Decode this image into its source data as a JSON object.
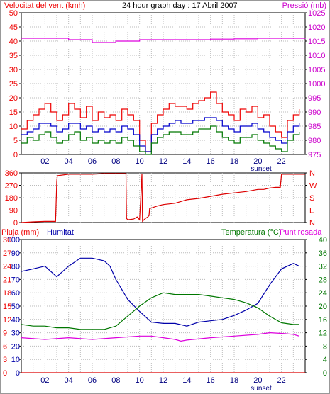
{
  "chart_data": [
    {
      "type": "line",
      "title": "24 hour graph day : 17 Abril 2007",
      "ylabel_left": "Velocitat del vent (kmh)",
      "ylabel_right": "Pressió (mb)",
      "x_ticks": [
        "02",
        "04",
        "06",
        "08",
        "10",
        "12",
        "14",
        "16",
        "18",
        "20",
        "22"
      ],
      "x_extra_label": "sunset",
      "xlim": [
        0,
        24
      ],
      "ylim_left": [
        0,
        50
      ],
      "yticks_left": [
        "0",
        "5",
        "10",
        "15",
        "20",
        "25",
        "30",
        "35",
        "40",
        "45",
        "50"
      ],
      "ylim_right": [
        975,
        1025
      ],
      "yticks_right": [
        "975",
        "980",
        "985",
        "990",
        "995",
        "1000",
        "1005",
        "1010",
        "1015",
        "1020",
        "1025"
      ],
      "grid": true,
      "colors": {
        "gust": "#ee0000",
        "avg": "#0000cc",
        "wind": "#007700",
        "pressure": "#dd00dd"
      },
      "series": [
        {
          "key": "gust",
          "axis": "left",
          "x": [
            0,
            0.5,
            1,
            1.5,
            2,
            2.5,
            3,
            3.5,
            4,
            4.5,
            5,
            5.5,
            6,
            6.5,
            7,
            7.5,
            8,
            8.5,
            9,
            9.5,
            10,
            10.5,
            11,
            11.5,
            12,
            12.5,
            13,
            13.5,
            14,
            14.5,
            15,
            15.5,
            16,
            16.5,
            17,
            17.5,
            18,
            18.5,
            19,
            19.5,
            20,
            20.5,
            21,
            21.5,
            22,
            22.5,
            23,
            23.5
          ],
          "y": [
            9,
            12,
            14,
            16,
            18,
            15,
            12,
            14,
            18,
            16,
            13,
            17,
            12,
            15,
            13,
            14,
            12,
            16,
            14,
            12,
            5,
            1,
            11,
            14,
            16,
            18,
            17,
            17,
            16,
            18,
            19,
            20,
            22,
            18,
            15,
            14,
            12,
            16,
            15,
            17,
            13,
            14,
            10,
            8,
            6,
            12,
            14,
            16
          ]
        },
        {
          "key": "avg",
          "axis": "left",
          "x": [
            0,
            0.5,
            1,
            1.5,
            2,
            2.5,
            3,
            3.5,
            4,
            4.5,
            5,
            5.5,
            6,
            6.5,
            7,
            7.5,
            8,
            8.5,
            9,
            9.5,
            10,
            10.5,
            11,
            11.5,
            12,
            12.5,
            13,
            13.5,
            14,
            14.5,
            15,
            15.5,
            16,
            16.5,
            17,
            17.5,
            18,
            18.5,
            19,
            19.5,
            20,
            20.5,
            21,
            21.5,
            22,
            22.5,
            23,
            23.5
          ],
          "y": [
            7,
            8,
            9,
            11,
            11,
            10,
            8,
            9,
            11,
            11,
            9,
            10,
            8,
            9,
            8,
            9,
            8,
            10,
            9,
            7,
            3,
            1,
            7,
            9,
            10,
            11,
            12,
            11,
            11,
            12,
            12,
            13,
            13,
            12,
            10,
            9,
            8,
            10,
            10,
            11,
            9,
            8,
            6,
            5,
            4,
            8,
            10,
            11
          ]
        },
        {
          "key": "wind",
          "axis": "left",
          "x": [
            0,
            0.5,
            1,
            1.5,
            2,
            2.5,
            3,
            3.5,
            4,
            4.5,
            5,
            5.5,
            6,
            6.5,
            7,
            7.5,
            8,
            8.5,
            9,
            9.5,
            10,
            10.5,
            11,
            11.5,
            12,
            12.5,
            13,
            13.5,
            14,
            14.5,
            15,
            15.5,
            16,
            16.5,
            17,
            17.5,
            18,
            18.5,
            19,
            19.5,
            20,
            20.5,
            21,
            21.5,
            22,
            22.5,
            23,
            23.5
          ],
          "y": [
            4,
            6,
            5,
            7,
            8,
            6,
            4,
            5,
            7,
            8,
            5,
            6,
            4,
            5,
            4,
            5,
            4,
            6,
            5,
            3,
            1,
            0,
            4,
            6,
            7,
            8,
            8,
            7,
            7,
            8,
            9,
            9,
            10,
            8,
            6,
            5,
            4,
            6,
            6,
            7,
            5,
            4,
            3,
            2,
            1,
            5,
            7,
            8
          ]
        },
        {
          "key": "pressure",
          "axis": "right",
          "x": [
            0,
            2,
            4,
            6,
            7,
            8,
            10,
            12,
            14,
            16,
            18,
            20,
            22,
            24
          ],
          "y": [
            1016,
            1016,
            1015.5,
            1014.5,
            1014.5,
            1015,
            1015.5,
            1015.5,
            1015.5,
            1015.7,
            1015.8,
            1016,
            1016,
            1016.2
          ]
        }
      ]
    },
    {
      "type": "line",
      "title": "",
      "xlim": [
        0,
        24
      ],
      "ylim_left": [
        0,
        360
      ],
      "yticks_left": [
        "0",
        "90",
        "180",
        "270",
        "360"
      ],
      "yticks_right": [
        "N",
        "E",
        "S",
        "W",
        "N"
      ],
      "grid": true,
      "colors": {
        "direction": "#dd0000"
      },
      "series": [
        {
          "key": "direction",
          "axis": "left",
          "x": [
            0,
            1,
            2,
            2.9,
            3,
            3.05,
            4,
            6,
            7,
            8,
            8.85,
            8.9,
            9,
            9.5,
            9.8,
            10,
            10.2,
            10.25,
            10.5,
            10.7,
            10.8,
            10.85,
            11,
            11.5,
            12,
            13,
            14,
            15,
            16,
            17,
            18,
            19,
            20,
            20.5,
            21,
            21.5,
            21.9,
            22,
            23,
            24
          ],
          "y": [
            0,
            5,
            8,
            8,
            300,
            340,
            350,
            350,
            355,
            355,
            355,
            30,
            20,
            25,
            40,
            20,
            350,
            10,
            30,
            40,
            50,
            100,
            105,
            120,
            130,
            140,
            165,
            175,
            190,
            205,
            215,
            225,
            240,
            240,
            250,
            255,
            255,
            350,
            350,
            350
          ]
        }
      ]
    },
    {
      "type": "line",
      "title": "",
      "ylabel_left": "Pluja (mm)",
      "ylabel_humidity": "Humitat",
      "ylabel_right": "Temperatura (°C)",
      "ylabel_right2": "Punt rosada",
      "x_ticks": [
        "02",
        "04",
        "06",
        "08",
        "10",
        "12",
        "14",
        "16",
        "18",
        "20",
        "22"
      ],
      "x_extra_label": "sunset",
      "xlim": [
        0,
        24
      ],
      "ylim_left": [
        0,
        100
      ],
      "yticks_rain": [
        "0",
        "3",
        "6",
        "9",
        "12",
        "15",
        "18",
        "21",
        "24",
        "27",
        "30"
      ],
      "yticks_humidity": [
        "0",
        "10",
        "20",
        "30",
        "40",
        "50",
        "60",
        "70",
        "80",
        "90",
        "100"
      ],
      "ylim_right": [
        0,
        40
      ],
      "yticks_right": [
        "0",
        "4",
        "8",
        "12",
        "16",
        "20",
        "24",
        "28",
        "32",
        "36",
        "40"
      ],
      "grid": true,
      "colors": {
        "humidity": "#0000aa",
        "temperature": "#007700",
        "dewpoint": "#dd00dd",
        "rain": "#dd0000"
      },
      "series": [
        {
          "key": "humidity",
          "axis": "left",
          "x": [
            0,
            1,
            2,
            3,
            3.5,
            4,
            5,
            6,
            7,
            7.5,
            8,
            9,
            10,
            11,
            12,
            13,
            14,
            15,
            16,
            17,
            18,
            19,
            20,
            21,
            22,
            23,
            23.5
          ],
          "y": [
            76,
            78,
            80,
            72,
            76,
            80,
            86,
            86,
            84,
            80,
            70,
            55,
            46,
            38,
            37,
            37,
            35,
            38,
            39,
            40,
            43,
            47,
            52,
            66,
            78,
            82,
            80
          ]
        },
        {
          "key": "temperature",
          "axis": "right",
          "x": [
            0,
            1,
            2,
            3,
            4,
            5,
            6,
            7,
            8,
            9,
            10,
            11,
            12,
            13,
            14,
            15,
            16,
            17,
            18,
            19,
            20,
            21,
            22,
            23,
            23.5
          ],
          "y": [
            14.5,
            14,
            14,
            13.5,
            13.5,
            13,
            13,
            13,
            14,
            17,
            20,
            22.5,
            24,
            23.5,
            23.5,
            23.5,
            23,
            22.5,
            22,
            21,
            19.5,
            17,
            15,
            14.5,
            14.5
          ]
        },
        {
          "key": "dewpoint",
          "axis": "right",
          "x": [
            0,
            2,
            4,
            6,
            8,
            10,
            11,
            12,
            13,
            13.5,
            14,
            16,
            18,
            20,
            21,
            22,
            23,
            23.5
          ],
          "y": [
            10.5,
            10,
            10.5,
            10,
            10.5,
            11,
            11,
            10.5,
            10,
            9.5,
            9.8,
            10.5,
            11,
            11.5,
            12,
            11.8,
            11.5,
            11
          ]
        },
        {
          "key": "rain",
          "axis": "left",
          "x": [
            0,
            24
          ],
          "y": [
            0,
            0
          ]
        }
      ]
    }
  ]
}
